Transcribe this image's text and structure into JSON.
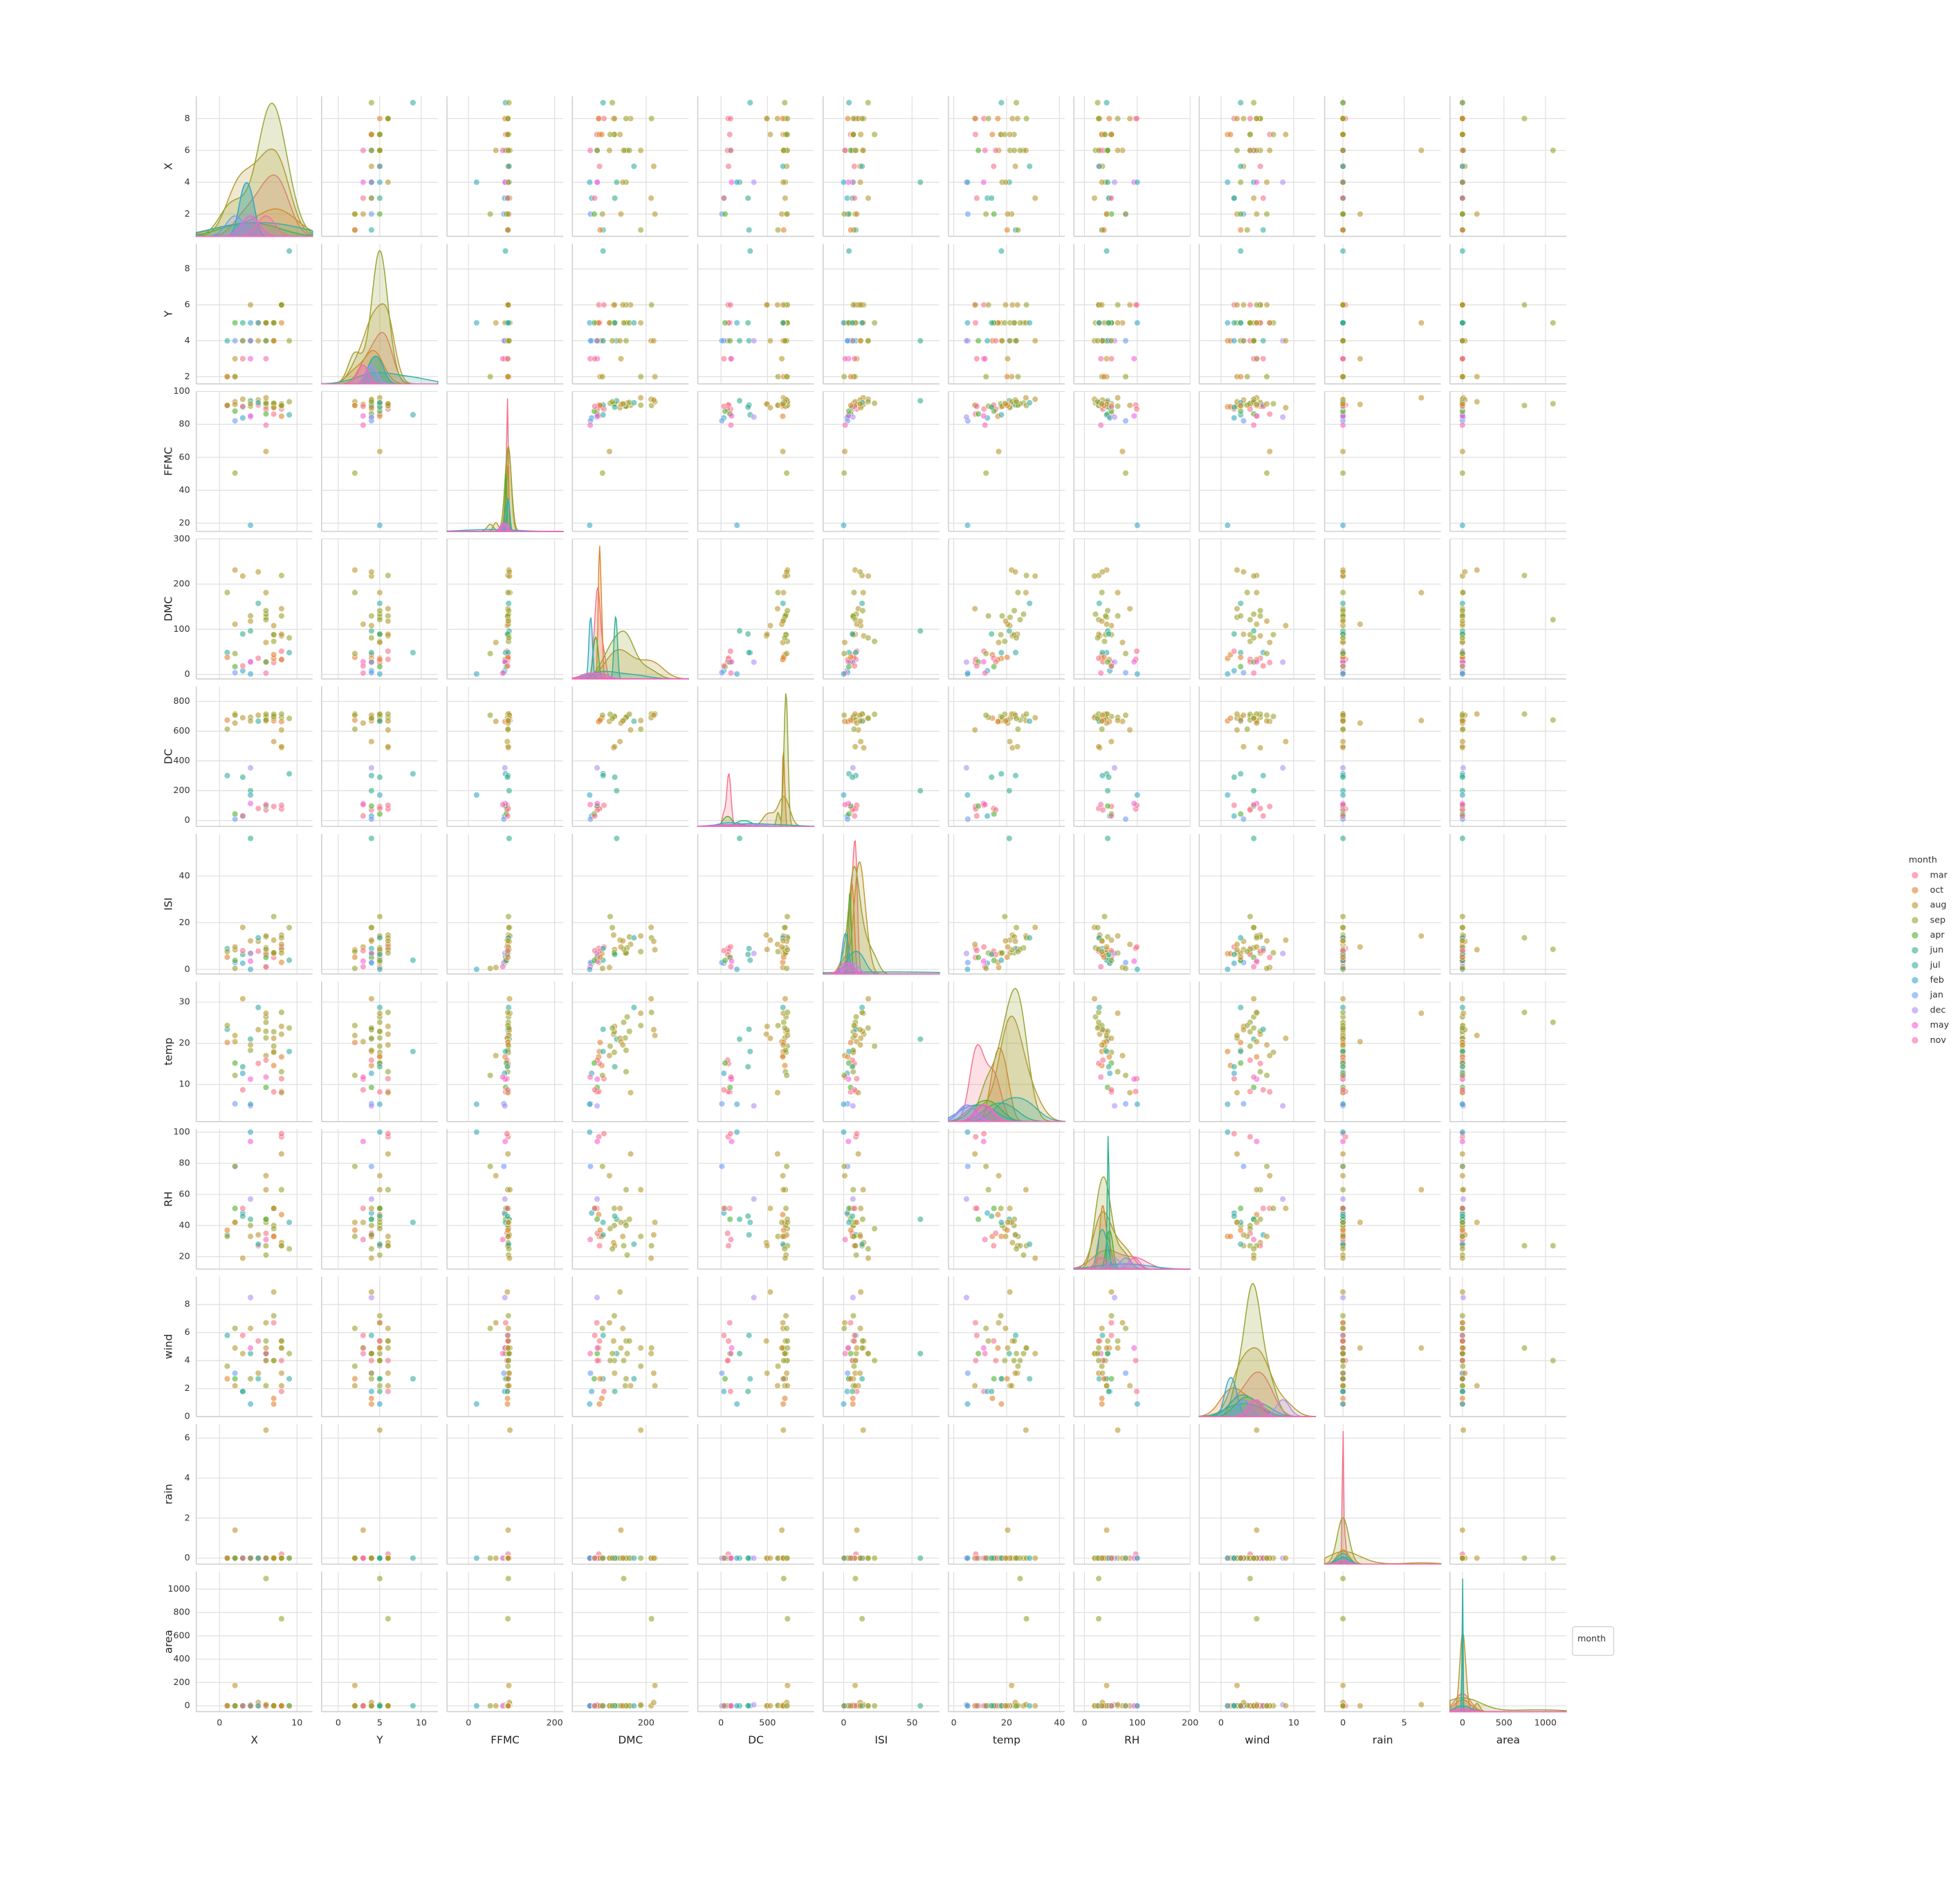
{
  "chart_data": {
    "type": "pairplot",
    "variables": [
      {
        "name": "X",
        "xlim": [
          -3,
          12
        ],
        "xticks": [
          0,
          10
        ],
        "ylim": [
          0.6,
          9.4
        ],
        "yticks": [
          2,
          4,
          6,
          8
        ]
      },
      {
        "name": "Y",
        "xlim": [
          -2,
          12
        ],
        "xticks": [
          0,
          5,
          10
        ],
        "ylim": [
          1.6,
          9.4
        ],
        "yticks": [
          2,
          4,
          6,
          8
        ]
      },
      {
        "name": "FFMC",
        "xlim": [
          -50,
          220
        ],
        "xticks": [
          0,
          200
        ],
        "ylim": [
          15,
          100
        ],
        "yticks": [
          20,
          40,
          60,
          80,
          100
        ]
      },
      {
        "name": "DMC",
        "xlim": [
          -60,
          350
        ],
        "xticks": [
          200
        ],
        "ylim": [
          -10,
          300
        ],
        "yticks": [
          0,
          100,
          200,
          300
        ]
      },
      {
        "name": "DC",
        "xlim": [
          -250,
          1000
        ],
        "xticks": [
          0,
          500
        ],
        "ylim": [
          -40,
          900
        ],
        "yticks": [
          0,
          200,
          400,
          600,
          800
        ]
      },
      {
        "name": "ISI",
        "xlim": [
          -15,
          70
        ],
        "xticks": [
          0,
          50
        ],
        "ylim": [
          -2,
          58
        ],
        "yticks": [
          0,
          20,
          40
        ]
      },
      {
        "name": "temp",
        "xlim": [
          -2,
          42
        ],
        "xticks": [
          0,
          20,
          40
        ],
        "ylim": [
          1,
          35
        ],
        "yticks": [
          10,
          20,
          30
        ]
      },
      {
        "name": "RH",
        "xlim": [
          -20,
          200
        ],
        "xticks": [
          0,
          100,
          200
        ],
        "ylim": [
          12,
          102
        ],
        "yticks": [
          20,
          40,
          60,
          80,
          100
        ]
      },
      {
        "name": "wind",
        "xlim": [
          -3,
          13
        ],
        "xticks": [
          0,
          10
        ],
        "ylim": [
          0,
          10
        ],
        "yticks": [
          0,
          2,
          4,
          6,
          8
        ]
      },
      {
        "name": "rain",
        "xlim": [
          -1.5,
          8
        ],
        "xticks": [
          0,
          5
        ],
        "ylim": [
          -0.3,
          6.7
        ],
        "yticks": [
          0,
          2,
          4,
          6
        ]
      },
      {
        "name": "area",
        "xlim": [
          -150,
          1250
        ],
        "xticks": [
          0,
          500,
          1000
        ],
        "ylim": [
          -50,
          1150
        ],
        "yticks": [
          0,
          200,
          400,
          600,
          800,
          1000
        ]
      }
    ],
    "hue": {
      "name": "month",
      "categories": [
        "mar",
        "oct",
        "aug",
        "sep",
        "apr",
        "jun",
        "jul",
        "feb",
        "jan",
        "dec",
        "may",
        "nov"
      ],
      "colors": [
        "#f77189",
        "#e18432",
        "#bb9832",
        "#97a431",
        "#50b131",
        "#34af8b",
        "#36ada4",
        "#38a8c4",
        "#6e9bf4",
        "#b18ef4",
        "#f461dd",
        "#f66bad"
      ]
    },
    "rows": [
      {
        "month": "mar",
        "values": [
          7,
          5,
          86.2,
          26.2,
          94.3,
          5.1,
          8.2,
          51,
          6.7,
          0,
          0
        ]
      },
      {
        "month": "oct",
        "values": [
          7,
          4,
          90.6,
          35.4,
          669.1,
          6.7,
          18,
          33,
          0.9,
          0,
          0
        ]
      },
      {
        "month": "oct",
        "values": [
          7,
          4,
          90.6,
          43.7,
          686.9,
          6.7,
          14.6,
          33,
          1.3,
          0,
          0
        ]
      },
      {
        "month": "mar",
        "values": [
          8,
          6,
          91.7,
          33.3,
          77.5,
          9,
          8.3,
          97,
          4,
          0.2,
          0
        ]
      },
      {
        "month": "mar",
        "values": [
          8,
          6,
          89.3,
          51.3,
          102.2,
          9.6,
          11.4,
          99,
          1.8,
          0,
          0
        ]
      },
      {
        "month": "aug",
        "values": [
          8,
          6,
          92.3,
          85.3,
          488,
          14.7,
          22.2,
          29,
          5.4,
          0,
          0
        ]
      },
      {
        "month": "aug",
        "values": [
          8,
          6,
          92.3,
          88.9,
          495.6,
          8.5,
          24.1,
          27,
          3.1,
          0,
          0
        ]
      },
      {
        "month": "aug",
        "values": [
          8,
          6,
          91.5,
          145.4,
          608.2,
          10.7,
          8,
          86,
          2.2,
          0,
          0
        ]
      },
      {
        "month": "sep",
        "values": [
          8,
          6,
          91,
          129.5,
          692.6,
          7,
          13.1,
          63,
          5.4,
          0,
          0
        ]
      },
      {
        "month": "sep",
        "values": [
          7,
          5,
          92.5,
          88,
          698.6,
          7.1,
          22.8,
          40,
          4,
          0,
          0
        ]
      },
      {
        "month": "sep",
        "values": [
          7,
          5,
          92.5,
          88,
          698.6,
          7.1,
          17.8,
          51,
          7.2,
          0,
          0
        ]
      },
      {
        "month": "sep",
        "values": [
          7,
          5,
          92.8,
          73.2,
          713,
          22.6,
          19.3,
          38,
          4,
          0,
          0
        ]
      },
      {
        "month": "aug",
        "values": [
          6,
          5,
          63.5,
          70.8,
          665.3,
          0.8,
          17,
          72,
          6.7,
          0,
          0
        ]
      },
      {
        "month": "sep",
        "values": [
          6,
          5,
          90.9,
          126.5,
          686.5,
          7,
          21.3,
          42,
          2.2,
          0,
          0
        ]
      },
      {
        "month": "sep",
        "values": [
          6,
          5,
          92.9,
          133.3,
          699.6,
          9.2,
          26.4,
          21,
          4.5,
          0,
          0
        ]
      },
      {
        "month": "sep",
        "values": [
          6,
          5,
          93.3,
          141.2,
          713.9,
          13.9,
          22.9,
          44,
          5.4,
          0,
          0
        ]
      },
      {
        "month": "mar",
        "values": [
          5,
          5,
          91.7,
          35.8,
          80.8,
          7.8,
          15.1,
          27,
          5.4,
          0,
          0
        ]
      },
      {
        "month": "oct",
        "values": [
          8,
          5,
          84.9,
          32.8,
          664.2,
          3,
          16.7,
          47,
          4.9,
          0,
          0
        ]
      },
      {
        "month": "mar",
        "values": [
          6,
          4,
          89.2,
          27.9,
          70.8,
          6.3,
          15.9,
          35,
          4,
          0,
          0
        ]
      },
      {
        "month": "apr",
        "values": [
          6,
          4,
          86.3,
          27.4,
          97.1,
          5.1,
          9.3,
          44,
          4.5,
          0,
          0
        ]
      },
      {
        "month": "sep",
        "values": [
          4,
          4,
          91,
          129.5,
          692.6,
          7,
          18.3,
          40,
          2.7,
          0,
          0
        ]
      },
      {
        "month": "jun",
        "values": [
          4,
          4,
          94.3,
          96.3,
          200,
          56.1,
          21,
          44,
          4.5,
          0,
          0
        ]
      },
      {
        "month": "jul",
        "values": [
          9,
          9,
          85.8,
          48.3,
          313.4,
          3.9,
          18,
          42,
          2.7,
          0,
          0.36
        ]
      },
      {
        "month": "jul",
        "values": [
          1,
          4,
          91.7,
          48.5,
          301.6,
          8.9,
          23.4,
          34,
          5.8,
          0,
          0
        ]
      },
      {
        "month": "feb",
        "values": [
          3,
          4,
          83.9,
          8,
          30.2,
          2.6,
          12.7,
          48,
          1.8,
          0,
          0
        ]
      },
      {
        "month": "jan",
        "values": [
          2,
          4,
          82.1,
          3.7,
          9.3,
          2.9,
          5.3,
          78,
          3.1,
          0,
          0
        ]
      },
      {
        "month": "dec",
        "values": [
          4,
          4,
          84.4,
          27.2,
          353.5,
          6.8,
          4.8,
          57,
          8.5,
          0,
          8.98
        ]
      },
      {
        "month": "may",
        "values": [
          4,
          3,
          85.1,
          28,
          113.8,
          3.5,
          11.3,
          94,
          4.9,
          0,
          0
        ]
      },
      {
        "month": "nov",
        "values": [
          6,
          3,
          79.5,
          3,
          106.7,
          1.1,
          11.8,
          31,
          4.5,
          0,
          0
        ]
      },
      {
        "month": "aug",
        "values": [
          6,
          5,
          96.1,
          181.1,
          671.2,
          14.3,
          27.3,
          63,
          4.9,
          6.4,
          10.82
        ]
      },
      {
        "month": "sep",
        "values": [
          6,
          5,
          92.5,
          121.1,
          674.4,
          8.6,
          25.1,
          27,
          4,
          0,
          1090.84
        ]
      },
      {
        "month": "sep",
        "values": [
          8,
          6,
          91.4,
          219,
          715.1,
          13.5,
          27.5,
          27,
          4.9,
          0,
          746.28
        ]
      },
      {
        "month": "feb",
        "values": [
          4,
          5,
          18.7,
          1.1,
          171.4,
          0,
          5.2,
          100,
          0.9,
          0,
          0
        ]
      },
      {
        "month": "aug",
        "values": [
          2,
          2,
          93.7,
          231.1,
          715.1,
          8.4,
          21.9,
          42,
          2.2,
          0,
          174.63
        ]
      },
      {
        "month": "aug",
        "values": [
          3,
          4,
          95.2,
          217.7,
          690,
          18,
          30.8,
          19,
          4.5,
          0,
          0
        ]
      },
      {
        "month": "sep",
        "values": [
          1,
          2,
          91.6,
          181.3,
          613,
          7.6,
          24.3,
          33,
          3.6,
          0,
          3.63
        ]
      },
      {
        "month": "aug",
        "values": [
          5,
          4,
          94.8,
          227,
          706.7,
          12,
          23.3,
          34,
          3.1,
          0,
          28.74
        ]
      },
      {
        "month": "aug",
        "values": [
          7,
          4,
          90.1,
          108,
          529.8,
          12.5,
          21.2,
          51,
          8.9,
          0,
          0.61
        ]
      },
      {
        "month": "apr",
        "values": [
          2,
          5,
          88,
          17.2,
          43.5,
          3.8,
          15.2,
          51,
          2.7,
          0,
          0
        ]
      },
      {
        "month": "jun",
        "values": [
          3,
          5,
          90.4,
          89.5,
          290.8,
          6.4,
          14.3,
          46,
          1.8,
          0,
          0.9
        ]
      },
      {
        "month": "jul",
        "values": [
          5,
          5,
          93.1,
          157.3,
          666.7,
          13.5,
          28.7,
          28,
          2.7,
          0,
          0
        ]
      },
      {
        "month": "sep",
        "values": [
          9,
          4,
          93.7,
          80.9,
          685.2,
          17.9,
          23.7,
          25,
          4.5,
          0,
          0
        ]
      },
      {
        "month": "aug",
        "values": [
          2,
          3,
          92.1,
          111.2,
          654.1,
          9.6,
          20.4,
          42,
          4.9,
          1.4,
          0
        ]
      },
      {
        "month": "mar",
        "values": [
          3,
          3,
          90.9,
          18.9,
          30.6,
          8,
          8.7,
          51,
          5.8,
          0,
          0
        ]
      },
      {
        "month": "oct",
        "values": [
          1,
          2,
          91.4,
          37.9,
          673.8,
          5.2,
          20.2,
          37,
          2.7,
          0,
          0
        ]
      },
      {
        "month": "aug",
        "values": [
          4,
          6,
          92.4,
          117.9,
          668,
          12.2,
          19.6,
          33,
          6.3,
          0,
          0
        ]
      },
      {
        "month": "sep",
        "values": [
          2,
          2,
          50.4,
          46.2,
          706.6,
          0.4,
          12.2,
          78,
          6.3,
          0,
          0
        ]
      }
    ],
    "legend_loc": "right"
  }
}
